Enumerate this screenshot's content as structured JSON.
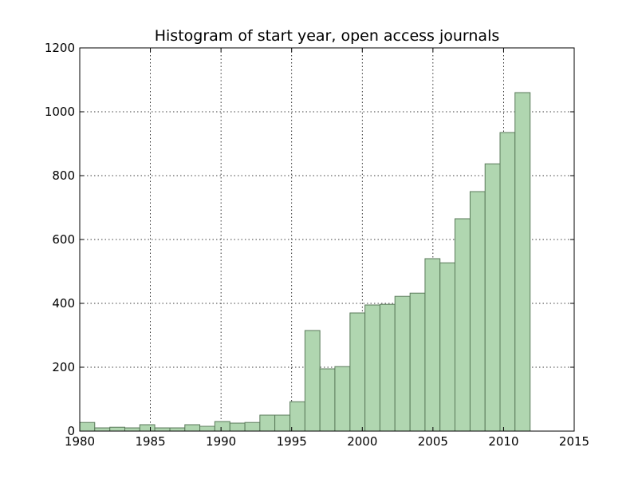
{
  "chart_data": {
    "type": "bar",
    "title": "Histogram of start year, open access journals",
    "xlabel": "",
    "ylabel": "",
    "xlim": [
      1980,
      2015
    ],
    "ylim": [
      0,
      1200
    ],
    "xticks": [
      "1980",
      "1985",
      "1990",
      "1995",
      "2000",
      "2005",
      "2010",
      "2015"
    ],
    "yticks": [
      "0",
      "200",
      "400",
      "600",
      "800",
      "1000",
      "1200"
    ],
    "grid": true,
    "bar_color": "#b0d6b0",
    "bar_edge_color": "#5a7a5a",
    "bins": [
      {
        "start": 1980.0,
        "end": 1981.06,
        "value": 27
      },
      {
        "start": 1981.06,
        "end": 1982.13,
        "value": 10
      },
      {
        "start": 1982.13,
        "end": 1983.19,
        "value": 12
      },
      {
        "start": 1983.19,
        "end": 1984.25,
        "value": 10
      },
      {
        "start": 1984.25,
        "end": 1985.31,
        "value": 20
      },
      {
        "start": 1985.31,
        "end": 1986.38,
        "value": 10
      },
      {
        "start": 1986.38,
        "end": 1987.44,
        "value": 10
      },
      {
        "start": 1987.44,
        "end": 1988.5,
        "value": 20
      },
      {
        "start": 1988.5,
        "end": 1989.56,
        "value": 15
      },
      {
        "start": 1989.56,
        "end": 1990.63,
        "value": 30
      },
      {
        "start": 1990.63,
        "end": 1991.69,
        "value": 25
      },
      {
        "start": 1991.69,
        "end": 1992.75,
        "value": 27
      },
      {
        "start": 1992.75,
        "end": 1993.81,
        "value": 50
      },
      {
        "start": 1993.81,
        "end": 1994.88,
        "value": 50
      },
      {
        "start": 1994.88,
        "end": 1995.94,
        "value": 92
      },
      {
        "start": 1995.94,
        "end": 1997.0,
        "value": 315
      },
      {
        "start": 1997.0,
        "end": 1998.06,
        "value": 195
      },
      {
        "start": 1998.06,
        "end": 1999.13,
        "value": 202
      },
      {
        "start": 1999.13,
        "end": 2000.19,
        "value": 370
      },
      {
        "start": 2000.19,
        "end": 2001.25,
        "value": 395
      },
      {
        "start": 2001.25,
        "end": 2002.31,
        "value": 397
      },
      {
        "start": 2002.31,
        "end": 2003.38,
        "value": 422
      },
      {
        "start": 2003.38,
        "end": 2004.44,
        "value": 432
      },
      {
        "start": 2004.44,
        "end": 2005.5,
        "value": 540
      },
      {
        "start": 2005.5,
        "end": 2006.56,
        "value": 527
      },
      {
        "start": 2006.56,
        "end": 2007.63,
        "value": 665
      },
      {
        "start": 2007.63,
        "end": 2008.69,
        "value": 750
      },
      {
        "start": 2008.69,
        "end": 2009.75,
        "value": 837
      },
      {
        "start": 2009.75,
        "end": 2010.81,
        "value": 935
      },
      {
        "start": 2010.81,
        "end": 2011.88,
        "value": 1060
      }
    ]
  }
}
